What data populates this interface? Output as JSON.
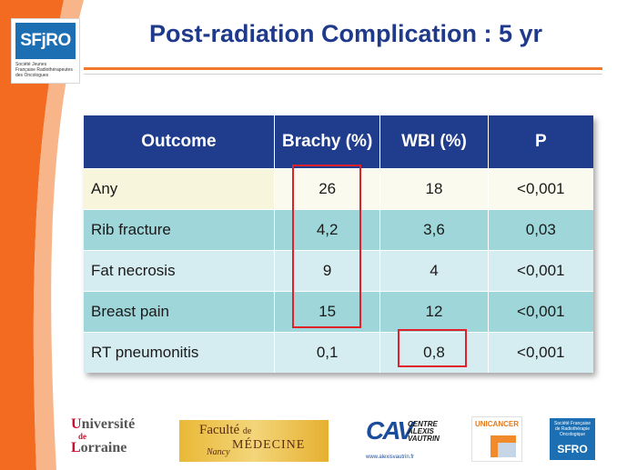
{
  "header": {
    "title": "Post-radiation Complication : 5 yr",
    "logo": {
      "name": "SFjRO",
      "subtitle_lines": [
        "Société  Jeunes",
        "Française  Radiothérapeutes",
        "des  Oncologues"
      ]
    }
  },
  "table": {
    "headers": [
      "Outcome",
      "Brachy (%)",
      "WBI (%)",
      "P"
    ],
    "rows": [
      {
        "outcome": "Any",
        "brachy": "26",
        "wbi": "18",
        "p": "<0,001"
      },
      {
        "outcome": "Rib fracture",
        "brachy": "4,2",
        "wbi": "3,6",
        "p": "0,03"
      },
      {
        "outcome": "Fat necrosis",
        "brachy": "9",
        "wbi": "4",
        "p": "<0,001"
      },
      {
        "outcome": "Breast pain",
        "brachy": "15",
        "wbi": "12",
        "p": "<0,001"
      },
      {
        "outcome": "RT pneumonitis",
        "brachy": "0,1",
        "wbi": "0,8",
        "p": "<0,001"
      }
    ]
  },
  "footer_logos": {
    "universite": {
      "line1_red": "U",
      "line1_rest": "niversité",
      "line2_red": "de",
      "line3_red": "L",
      "line3_rest": "orraine"
    },
    "faculte": {
      "line1": "Faculté",
      "line2_small": "de",
      "line2": "MÉDECINE",
      "line3": "Nancy"
    },
    "cav": {
      "letters": "CAV",
      "name_lines": [
        "CENTRE",
        "ALEXIS",
        "VAUTRIN"
      ],
      "url": "www.alexisvautrin.fr"
    },
    "unicancer": {
      "name": "UNICANCER"
    },
    "sfro": {
      "subtitle_lines": [
        "Société Française",
        "de Radiothérapie",
        "Oncologique"
      ],
      "name": "SFRO"
    }
  },
  "colors": {
    "title": "#1f3a8a",
    "header_bg": "#203c8c",
    "row_teal": "#9fd6d9",
    "row_light": "#d5ecf0",
    "accent_orange": "#f07a2b",
    "highlight_red": "#e0202a"
  }
}
